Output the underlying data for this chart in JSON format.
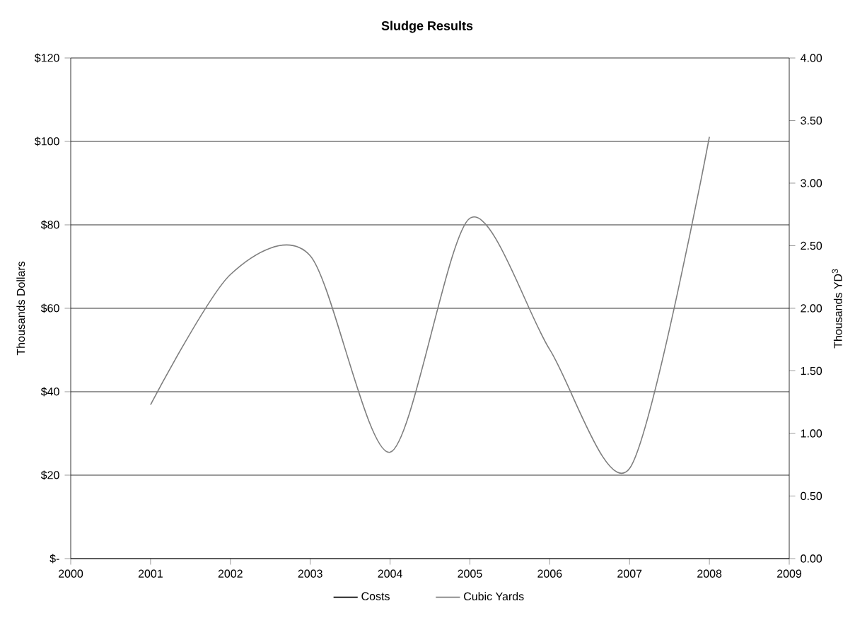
{
  "chart_data": {
    "type": "line",
    "title": "Sludge Results",
    "ylabel": "Thousands Dollars",
    "y2label": "Thousands YD$^{3}$",
    "x": [
      2001,
      2002,
      2003,
      2004,
      2005,
      2006,
      2007,
      2008
    ],
    "series": [
      {
        "name": "Costs",
        "values": [
          null,
          null,
          null,
          null,
          null,
          null,
          null,
          null
        ]
      },
      {
        "name": "Cubic Yards",
        "color": "#7f7f7f",
        "axis": "y2",
        "values": [
          1.23,
          2.27,
          2.42,
          0.85,
          2.72,
          1.67,
          0.72,
          3.37
        ]
      }
    ],
    "xlim": [
      2000,
      2009
    ],
    "xticks": [
      2000,
      2001,
      2002,
      2003,
      2004,
      2005,
      2006,
      2007,
      2008,
      2009
    ],
    "ylim": [
      0,
      120
    ],
    "yticks": [
      {
        "value": 0,
        "label": "$-"
      },
      {
        "value": 20,
        "label": "$20"
      },
      {
        "value": 40,
        "label": "$40"
      },
      {
        "value": 60,
        "label": "$60"
      },
      {
        "value": 80,
        "label": "$80"
      },
      {
        "value": 100,
        "label": "$100"
      },
      {
        "value": 120,
        "label": "$120"
      }
    ],
    "y2lim": [
      0,
      4
    ],
    "y2ticks": [
      {
        "value": 0,
        "label": "0.00"
      },
      {
        "value": 0.5,
        "label": "0.50"
      },
      {
        "value": 1,
        "label": "1.00"
      },
      {
        "value": 1.5,
        "label": "1.50"
      },
      {
        "value": 2,
        "label": "2.00"
      },
      {
        "value": 2.5,
        "label": "2.50"
      },
      {
        "value": 3,
        "label": "3.00"
      },
      {
        "value": 3.5,
        "label": "3.50"
      },
      {
        "value": 4,
        "label": "4.00"
      }
    ],
    "grid": "y",
    "legend": "bottom",
    "marker": "none",
    "line_style": "solid"
  }
}
